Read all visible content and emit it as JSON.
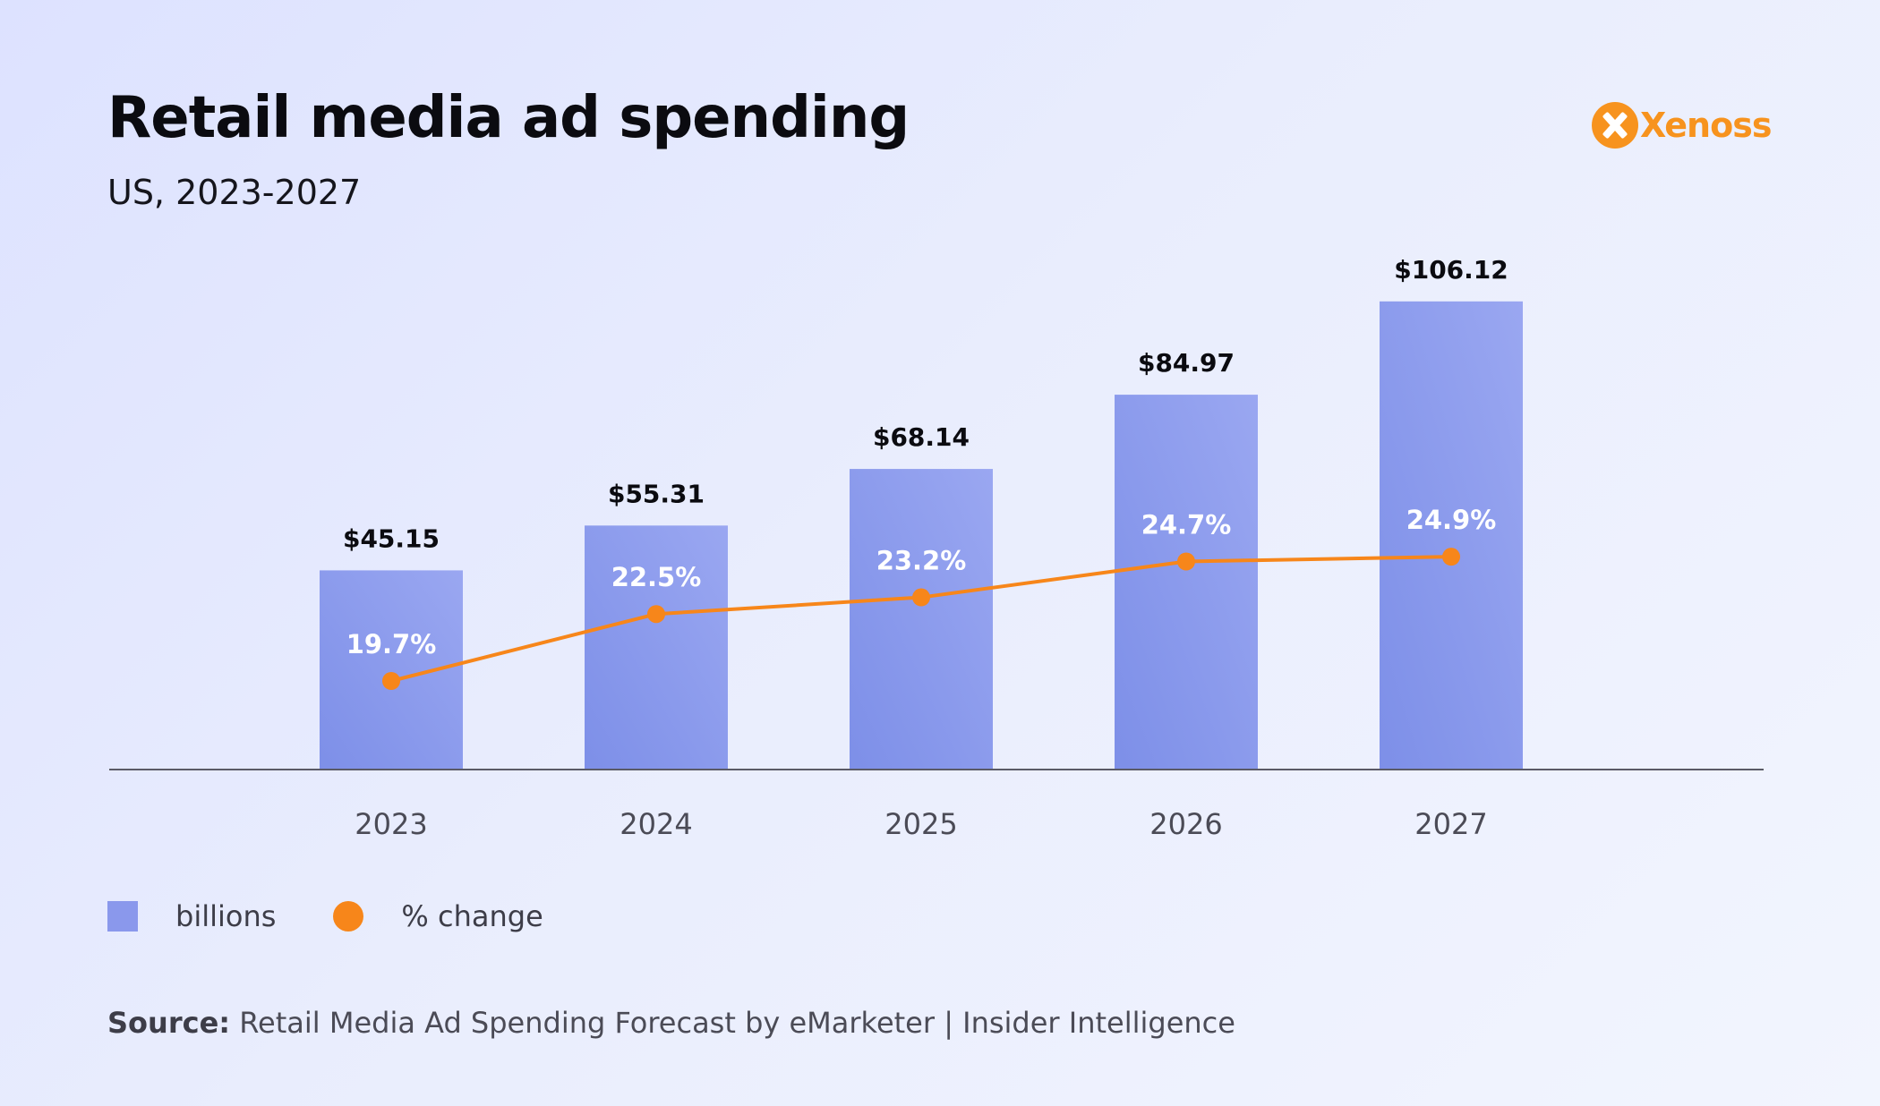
{
  "title": "Retail media ad spending",
  "subtitle": "US, 2023-2027",
  "brand": {
    "name": "Xenoss",
    "icon": "x-logo-icon",
    "color": "#f7931e"
  },
  "legend": {
    "bars_label": "billions",
    "line_label": "% change"
  },
  "source": {
    "label": "Source:",
    "text": "Retail Media Ad Spending Forecast by eMarketer | Insider Intelligence"
  },
  "colors": {
    "bar": "#8a98ec",
    "line": "#f7861a",
    "axis": "#5a5a66"
  },
  "chart_data": {
    "type": "bar",
    "title": "Retail media ad spending",
    "subtitle": "US, 2023-2027",
    "categories": [
      "2023",
      "2024",
      "2025",
      "2026",
      "2027"
    ],
    "series": [
      {
        "name": "billions",
        "type": "bar",
        "values": [
          45.15,
          55.31,
          68.14,
          84.97,
          106.12
        ],
        "labels": [
          "$45.15",
          "$55.31",
          "$68.14",
          "$84.97",
          "$106.12"
        ]
      },
      {
        "name": "% change",
        "type": "line",
        "values": [
          19.7,
          22.5,
          23.2,
          24.7,
          24.9
        ],
        "labels": [
          "19.7%",
          "22.5%",
          "23.2%",
          "24.7%",
          "24.9%"
        ]
      }
    ],
    "xlabel": "",
    "ylabel": "",
    "grid": false,
    "legend_position": "bottom-left"
  }
}
